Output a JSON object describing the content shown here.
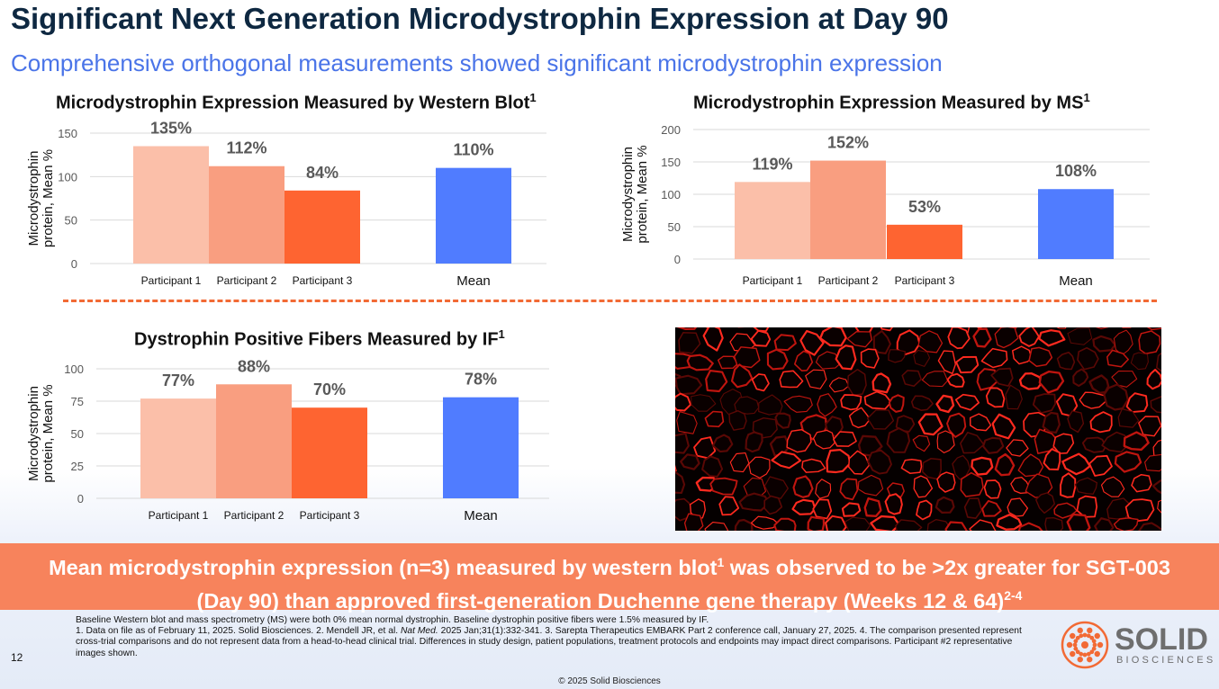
{
  "page": {
    "title": "Significant Next Generation Microdystrophin Expression at Day 90",
    "subtitle": "Comprehensive orthogonal measurements showed significant microdystrophin expression"
  },
  "colors": {
    "participant1": "#fbbfa9",
    "participant2": "#f99e80",
    "participant3": "#fe6431",
    "mean": "#507cff",
    "grid": "#d9d9d9",
    "value_label": "#595959"
  },
  "chart_data": [
    {
      "type": "bar",
      "title": "Microdystrophin Expression Measured by Western Blot",
      "title_sup": "1",
      "ylabel": "Microdystrophin protein, Mean %",
      "ylabel_lines": [
        "Microdystrophin",
        "protein, Mean %"
      ],
      "ylim": [
        0,
        150
      ],
      "yticks": [
        0,
        50,
        100,
        150
      ],
      "categories": [
        "Participant 1",
        "Participant 2",
        "Participant 3",
        "Mean"
      ],
      "values": [
        135,
        112,
        84,
        110
      ],
      "labels": [
        "135%",
        "112%",
        "84%",
        "110%"
      ]
    },
    {
      "type": "bar",
      "title": "Microdystrophin Expression Measured by MS",
      "title_sup": "1",
      "ylabel": "Microdystrophin protein, Mean %",
      "ylabel_lines": [
        "Microdystrophin",
        "protein, Mean %"
      ],
      "ylim": [
        0,
        200
      ],
      "yticks": [
        0,
        50,
        100,
        150,
        200
      ],
      "categories": [
        "Participant 1",
        "Participant 2",
        "Participant 3",
        "Mean"
      ],
      "values": [
        119,
        152,
        53,
        108
      ],
      "labels": [
        "119%",
        "152%",
        "53%",
        "108%"
      ]
    },
    {
      "type": "bar",
      "title": "Dystrophin Positive Fibers Measured by IF",
      "title_sup": "1",
      "ylabel": "Microdystrophin protein, Mean %",
      "ylabel_lines": [
        "Microdystrophin",
        "protein, Mean %"
      ],
      "ylim": [
        0,
        100
      ],
      "yticks": [
        0,
        25,
        50,
        75,
        100
      ],
      "categories": [
        "Participant 1",
        "Participant 2",
        "Participant 3",
        "Mean"
      ],
      "values": [
        77,
        88,
        70,
        78
      ],
      "labels": [
        "77%",
        "88%",
        "70%",
        "78%"
      ]
    }
  ],
  "banner": {
    "line1_a": "Mean microdystrophin expression (n=3) measured by western blot",
    "line1_sup": "1",
    "line1_b": " was observed to be >2x greater for SGT-003",
    "line2_a": "(Day 90) than approved first-generation Duchenne gene therapy (Weeks 12 & 64)",
    "line2_sup": "2-4"
  },
  "footnote": {
    "baseline": "Baseline Western blot and mass spectrometry (MS) were both 0% mean normal dystrophin. Baseline dystrophin positive fibers were 1.5% measured by IF.",
    "refs_a": "1. Data on file as of February 11, 2025. Solid Biosciences. 2. Mendell JR, et al. ",
    "refs_journal": "Nat Med.",
    "refs_b": " 2025 Jan;31(1):332-341. 3. Sarepta Therapeutics EMBARK Part 2 conference call, January 27, 2025. 4. The comparison presented represent cross-trial comparisons and do not represent data from a head-to-head clinical trial. Differences in study design, patient populations, treatment protocols and endpoints may impact direct comparisons. Participant #2 representative images shown."
  },
  "page_number": "12",
  "copyright": "© 2025 Solid Biosciences",
  "logo": {
    "name": "SOLID",
    "sub": "BIOSCIENCES"
  }
}
